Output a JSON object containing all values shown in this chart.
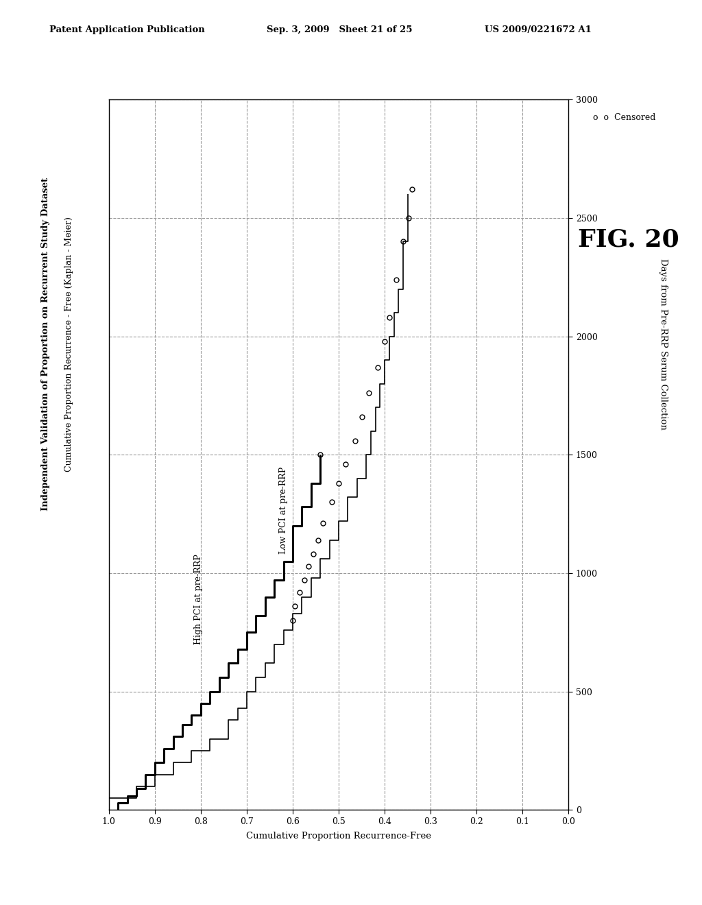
{
  "title_main": "Independent Validation of Proportion on Recurrent Study Dataset",
  "title_sub": "Cumulative Proportion Recurrence - Free (Kaplan - Meier)",
  "xlabel": "Days from Pre-RRP Serum Collection",
  "ylabel": "Cumulative Proportion Recurrence-Free",
  "xlim": [
    0,
    3000
  ],
  "ylim": [
    0.0,
    1.0
  ],
  "xticks": [
    0,
    500,
    1000,
    1500,
    2000,
    2500,
    3000
  ],
  "yticks": [
    0.0,
    0.1,
    0.2,
    0.3,
    0.4,
    0.5,
    0.6,
    0.7,
    0.8,
    0.9,
    1.0
  ],
  "header_left": "Patent Application Publication",
  "header_mid": "Sep. 3, 2009   Sheet 21 of 25",
  "header_right": "US 2009/0221672 A1",
  "fig_label": "FIG. 20",
  "label_high": "High PCI at pre-RRP",
  "label_low": "Low PCI at pre-RRP",
  "low_pci_steps": [
    [
      0,
      0.98
    ],
    [
      30,
      0.98
    ],
    [
      30,
      0.96
    ],
    [
      60,
      0.96
    ],
    [
      60,
      0.94
    ],
    [
      90,
      0.94
    ],
    [
      90,
      0.92
    ],
    [
      150,
      0.92
    ],
    [
      150,
      0.9
    ],
    [
      200,
      0.9
    ],
    [
      200,
      0.88
    ],
    [
      260,
      0.88
    ],
    [
      260,
      0.86
    ],
    [
      310,
      0.86
    ],
    [
      310,
      0.84
    ],
    [
      360,
      0.84
    ],
    [
      360,
      0.82
    ],
    [
      400,
      0.82
    ],
    [
      400,
      0.8
    ],
    [
      450,
      0.8
    ],
    [
      450,
      0.78
    ],
    [
      500,
      0.78
    ],
    [
      500,
      0.76
    ],
    [
      560,
      0.76
    ],
    [
      560,
      0.74
    ],
    [
      620,
      0.74
    ],
    [
      620,
      0.72
    ],
    [
      680,
      0.72
    ],
    [
      680,
      0.7
    ],
    [
      750,
      0.7
    ],
    [
      750,
      0.68
    ],
    [
      820,
      0.68
    ],
    [
      820,
      0.66
    ],
    [
      900,
      0.66
    ],
    [
      900,
      0.64
    ],
    [
      970,
      0.64
    ],
    [
      970,
      0.62
    ],
    [
      1050,
      0.62
    ],
    [
      1050,
      0.6
    ],
    [
      1120,
      0.6
    ],
    [
      1200,
      0.6
    ],
    [
      1200,
      0.58
    ],
    [
      1280,
      0.58
    ],
    [
      1280,
      0.56
    ],
    [
      1380,
      0.56
    ],
    [
      1380,
      0.54
    ],
    [
      1450,
      0.54
    ],
    [
      1500,
      0.54
    ]
  ],
  "high_pci_steps": [
    [
      0,
      1.0
    ],
    [
      50,
      1.0
    ],
    [
      50,
      0.94
    ],
    [
      100,
      0.94
    ],
    [
      100,
      0.9
    ],
    [
      150,
      0.9
    ],
    [
      150,
      0.86
    ],
    [
      200,
      0.86
    ],
    [
      200,
      0.82
    ],
    [
      250,
      0.82
    ],
    [
      250,
      0.78
    ],
    [
      300,
      0.78
    ],
    [
      300,
      0.74
    ],
    [
      380,
      0.74
    ],
    [
      380,
      0.72
    ],
    [
      430,
      0.72
    ],
    [
      430,
      0.7
    ],
    [
      500,
      0.7
    ],
    [
      500,
      0.68
    ],
    [
      560,
      0.68
    ],
    [
      560,
      0.66
    ],
    [
      620,
      0.66
    ],
    [
      620,
      0.64
    ],
    [
      700,
      0.64
    ],
    [
      700,
      0.62
    ],
    [
      760,
      0.62
    ],
    [
      760,
      0.6
    ],
    [
      830,
      0.6
    ],
    [
      830,
      0.58
    ],
    [
      900,
      0.58
    ],
    [
      900,
      0.56
    ],
    [
      980,
      0.56
    ],
    [
      980,
      0.54
    ],
    [
      1060,
      0.54
    ],
    [
      1060,
      0.52
    ],
    [
      1140,
      0.52
    ],
    [
      1140,
      0.5
    ],
    [
      1220,
      0.5
    ],
    [
      1220,
      0.48
    ],
    [
      1320,
      0.48
    ],
    [
      1320,
      0.46
    ],
    [
      1400,
      0.46
    ],
    [
      1400,
      0.44
    ],
    [
      1500,
      0.44
    ],
    [
      1500,
      0.43
    ],
    [
      1600,
      0.43
    ],
    [
      1600,
      0.42
    ],
    [
      1700,
      0.42
    ],
    [
      1700,
      0.41
    ],
    [
      1800,
      0.41
    ],
    [
      1800,
      0.4
    ],
    [
      1900,
      0.4
    ],
    [
      1900,
      0.39
    ],
    [
      2000,
      0.39
    ],
    [
      2000,
      0.38
    ],
    [
      2100,
      0.38
    ],
    [
      2100,
      0.37
    ],
    [
      2200,
      0.37
    ],
    [
      2200,
      0.36
    ],
    [
      2400,
      0.36
    ],
    [
      2400,
      0.35
    ],
    [
      2600,
      0.35
    ]
  ],
  "low_pci_censored_x": [
    1500
  ],
  "low_pci_censored_y": [
    0.54
  ],
  "high_pci_censored_x": [
    800,
    860,
    920,
    970,
    1030,
    1080,
    1140,
    1210,
    1300,
    1380,
    1460,
    1560,
    1660,
    1760,
    1870,
    1980,
    2080,
    2240,
    2400,
    2500,
    2620
  ],
  "high_pci_censored_y": [
    0.6,
    0.595,
    0.585,
    0.575,
    0.565,
    0.555,
    0.545,
    0.535,
    0.515,
    0.5,
    0.485,
    0.465,
    0.45,
    0.435,
    0.415,
    0.4,
    0.39,
    0.375,
    0.36,
    0.348,
    0.34
  ],
  "background_color": "#ffffff",
  "line_color": "#000000",
  "grid_color": "#999999",
  "grid_style": "--"
}
